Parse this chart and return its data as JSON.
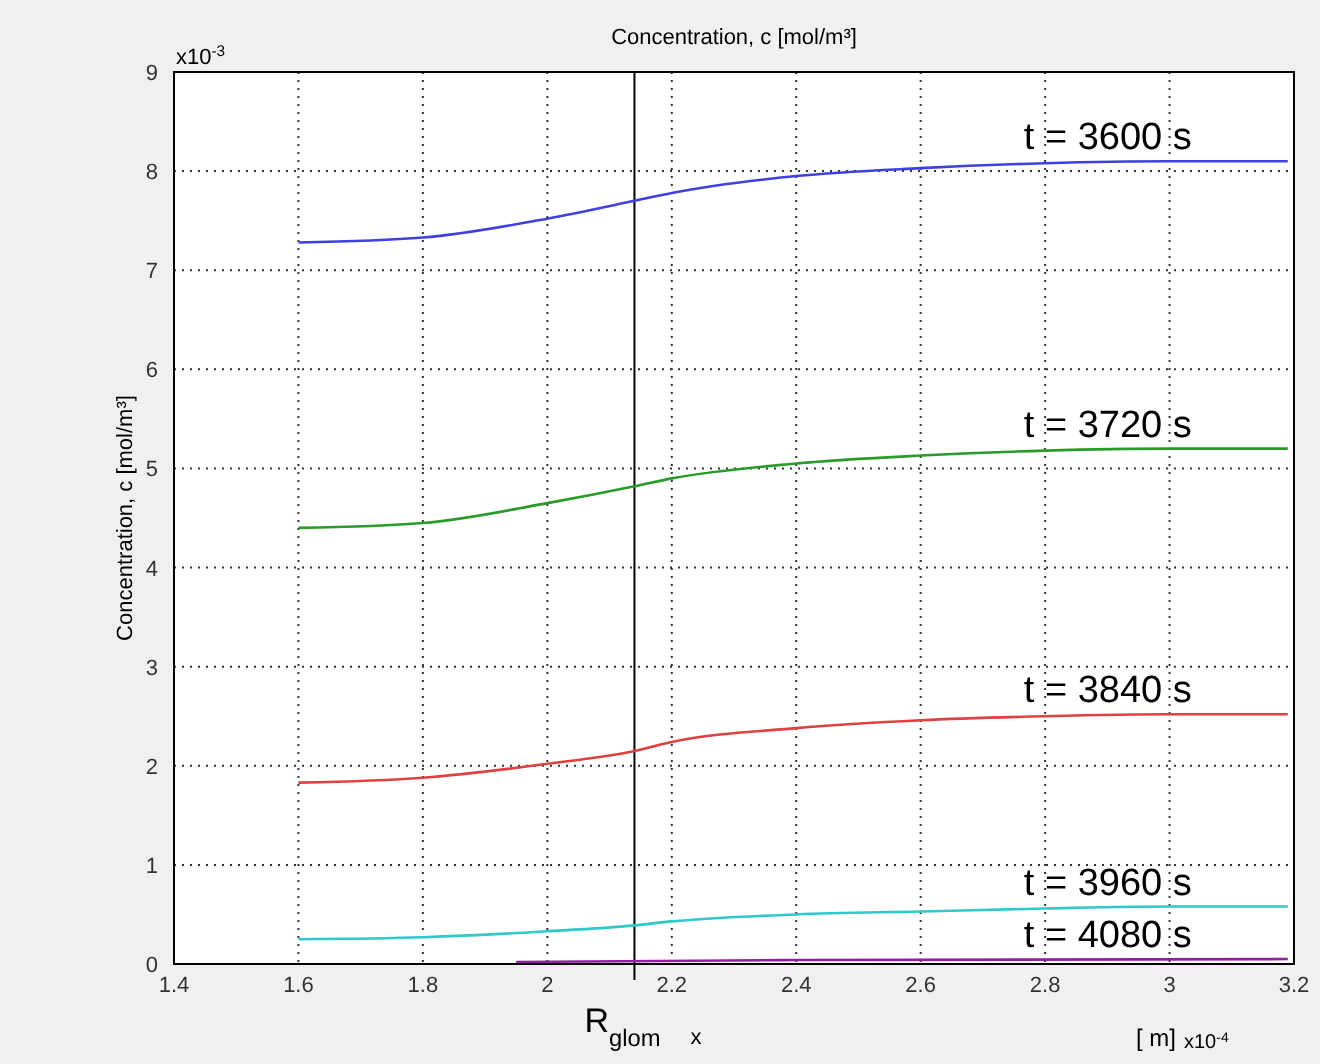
{
  "chart_data": {
    "type": "line",
    "title": "Concentration, c [mol/m³]",
    "ylabel": "Concentration, c [mol/m³]",
    "xlabel": "x",
    "annotations": [
      "x10$^{-3}$",
      "[ m]",
      "x10$^{-4}$"
    ],
    "xlim": [
      1.4,
      3.2
    ],
    "xticks": [
      1.4,
      1.6,
      1.8,
      2,
      2.2,
      2.4,
      2.6,
      2.8,
      3,
      3.2
    ],
    "ylim": [
      0,
      9
    ],
    "yticks": [
      0,
      1,
      2,
      3,
      4,
      5,
      6,
      7,
      8,
      9
    ],
    "grid": true,
    "marker": "none",
    "line_style": "solid",
    "ref_lines": [
      {
        "axis": "x",
        "value": 2.14,
        "label": "R$_{glom}$",
        "color": "#000000"
      }
    ],
    "series": [
      {
        "name": "t = 3600 s",
        "color": "#4040e0",
        "x": [
          1.6,
          1.8,
          2,
          2.14,
          2.2,
          2.4,
          2.6,
          2.8,
          3,
          3.19
        ],
        "values": [
          7.28,
          7.33,
          7.52,
          7.7,
          7.78,
          7.95,
          8.03,
          8.08,
          8.1,
          8.1
        ]
      },
      {
        "name": "t = 3720 s",
        "color": "#2a9a2a",
        "x": [
          1.6,
          1.8,
          2,
          2.14,
          2.2,
          2.4,
          2.6,
          2.8,
          3,
          3.19
        ],
        "values": [
          4.4,
          4.45,
          4.65,
          4.82,
          4.9,
          5.05,
          5.13,
          5.18,
          5.2,
          5.2
        ]
      },
      {
        "name": "t = 3840 s",
        "color": "#e04040",
        "x": [
          1.6,
          1.8,
          2,
          2.14,
          2.2,
          2.4,
          2.6,
          2.8,
          3,
          3.19
        ],
        "values": [
          1.83,
          1.88,
          2.02,
          2.15,
          2.24,
          2.38,
          2.46,
          2.5,
          2.52,
          2.52
        ]
      },
      {
        "name": "t = 3960 s",
        "color": "#30c8c8",
        "x": [
          1.6,
          1.8,
          2,
          2.14,
          2.2,
          2.4,
          2.6,
          2.8,
          3,
          3.19
        ],
        "values": [
          0.25,
          0.27,
          0.33,
          0.39,
          0.43,
          0.5,
          0.53,
          0.56,
          0.58,
          0.58
        ]
      },
      {
        "name": "t = 4080 s",
        "color": "#9020a0",
        "x": [
          1.95,
          2.4,
          3.19
        ],
        "values": [
          0.02,
          0.04,
          0.05
        ]
      }
    ]
  }
}
